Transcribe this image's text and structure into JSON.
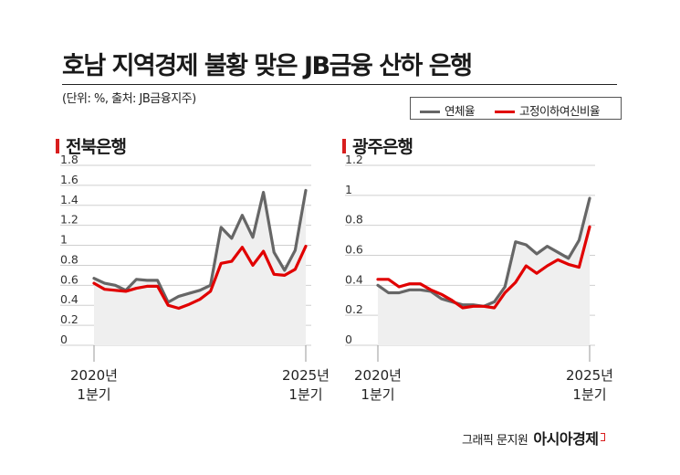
{
  "header": {
    "title": "호남 지역경제 불황 맞은 JB금융 산하 은행",
    "unit_note": "(단위: %, 출처: JB금융지주)"
  },
  "legend": [
    {
      "label": "연체율",
      "color": "#666666"
    },
    {
      "label": "고정이하여신비율",
      "color": "#e10000"
    }
  ],
  "colors": {
    "overdue": "#666666",
    "npl": "#e10000",
    "area": "#efefef",
    "accent": "#d81e1e"
  },
  "chart_data": [
    {
      "type": "line",
      "title": "전북은행",
      "ylim": [
        0,
        1.8
      ],
      "yticks": [
        "0",
        "0.2",
        "0.4",
        "0.6",
        "0.8",
        "1",
        "1.2",
        "1.4",
        "1.6",
        "1.8"
      ],
      "x_labels": {
        "start": [
          "2020년",
          "1분기"
        ],
        "end": [
          "2025년",
          "1분기"
        ]
      },
      "x_count": 21,
      "area_fill": true,
      "series": [
        {
          "name": "연체율",
          "color": "#666666",
          "values": [
            0.67,
            0.62,
            0.6,
            0.55,
            0.66,
            0.65,
            0.65,
            0.43,
            0.49,
            0.52,
            0.55,
            0.6,
            1.18,
            1.07,
            1.3,
            1.08,
            1.53,
            0.93,
            0.75,
            0.95,
            1.55
          ]
        },
        {
          "name": "고정이하여신비율",
          "color": "#e10000",
          "values": [
            0.62,
            0.56,
            0.55,
            0.54,
            0.57,
            0.59,
            0.59,
            0.4,
            0.37,
            0.41,
            0.46,
            0.54,
            0.82,
            0.84,
            0.98,
            0.8,
            0.94,
            0.71,
            0.7,
            0.76,
            0.99
          ]
        }
      ]
    },
    {
      "type": "line",
      "title": "광주은행",
      "ylim": [
        0,
        1.2
      ],
      "yticks": [
        "0",
        "0.2",
        "0.4",
        "0.6",
        "0.8",
        "1",
        "1.2"
      ],
      "x_labels": {
        "start": [
          "2020년",
          "1분기"
        ],
        "end": [
          "2025년",
          "1분기"
        ]
      },
      "x_count": 21,
      "area_fill": true,
      "series": [
        {
          "name": "연체율",
          "color": "#666666",
          "values": [
            0.4,
            0.35,
            0.35,
            0.37,
            0.37,
            0.36,
            0.31,
            0.29,
            0.27,
            0.27,
            0.26,
            0.29,
            0.39,
            0.69,
            0.67,
            0.61,
            0.66,
            0.62,
            0.58,
            0.7,
            0.98
          ]
        },
        {
          "name": "고정이하여신비율",
          "color": "#e10000",
          "values": [
            0.44,
            0.44,
            0.39,
            0.41,
            0.41,
            0.37,
            0.34,
            0.3,
            0.25,
            0.26,
            0.26,
            0.25,
            0.35,
            0.42,
            0.53,
            0.48,
            0.53,
            0.57,
            0.54,
            0.52,
            0.79
          ]
        }
      ]
    }
  ],
  "credit": {
    "text": "그래픽 문지원",
    "brand": "아시아경제"
  }
}
